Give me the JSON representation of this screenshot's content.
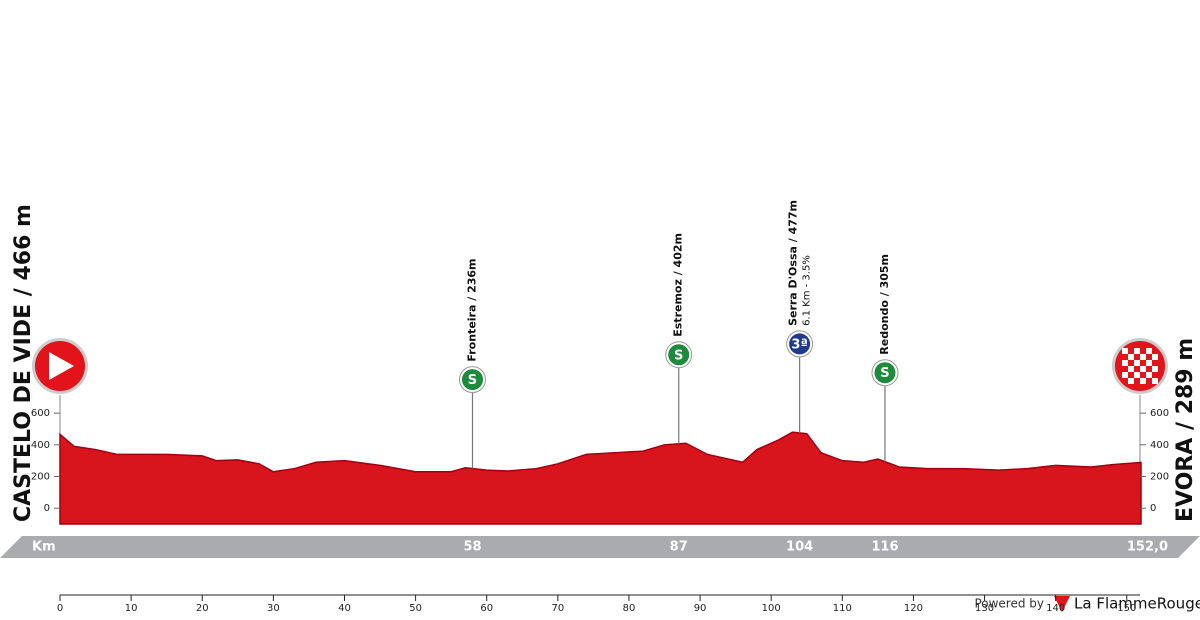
{
  "chart_data": {
    "type": "area",
    "start": "CASTELO DE VIDE / 466 m",
    "finish": "EVORA / 289 m",
    "x": [
      0,
      2,
      5,
      8,
      15,
      20,
      22,
      25,
      28,
      30,
      33,
      36,
      40,
      45,
      50,
      55,
      57,
      60,
      63,
      67,
      70,
      74,
      78,
      82,
      85,
      88,
      91,
      94,
      96,
      98,
      101,
      103,
      105,
      107,
      110,
      113,
      115,
      118,
      122,
      127,
      132,
      136,
      140,
      145,
      148,
      152
    ],
    "values": [
      466,
      390,
      370,
      340,
      340,
      330,
      300,
      305,
      280,
      230,
      250,
      290,
      300,
      270,
      230,
      230,
      255,
      240,
      235,
      250,
      280,
      340,
      350,
      360,
      400,
      410,
      340,
      310,
      290,
      370,
      430,
      480,
      470,
      350,
      300,
      290,
      310,
      260,
      250,
      250,
      240,
      250,
      270,
      260,
      275,
      289
    ],
    "color": "#d8141c",
    "xlim": [
      0,
      152
    ],
    "xticks": [
      0,
      10,
      20,
      30,
      40,
      50,
      60,
      70,
      80,
      90,
      100,
      110,
      120,
      130,
      140,
      150
    ],
    "ylim": [
      -100,
      700
    ],
    "yticks": [
      0,
      200,
      400,
      600
    ],
    "km_label": "Km",
    "km_markers": [
      58,
      87,
      104,
      116,
      {
        "value": 152,
        "label": "152,0"
      }
    ],
    "annotations": [
      {
        "name": "Fronteira / 236m",
        "icon": "S",
        "color": "#1e8a3c"
      },
      {
        "name": "Estremoz / 402m",
        "icon": "S",
        "color": "#1e8a3c"
      },
      {
        "name": "Serra D'Ossa / 477m",
        "detail": "6.1 Km - 3.5%",
        "icon": "3ª",
        "color": "#1f3a8f"
      },
      {
        "name": "Redondo / 305m",
        "icon": "S",
        "color": "#1e8a3c"
      }
    ],
    "footer": "Powered by",
    "brand": "La FlammeRouge"
  }
}
